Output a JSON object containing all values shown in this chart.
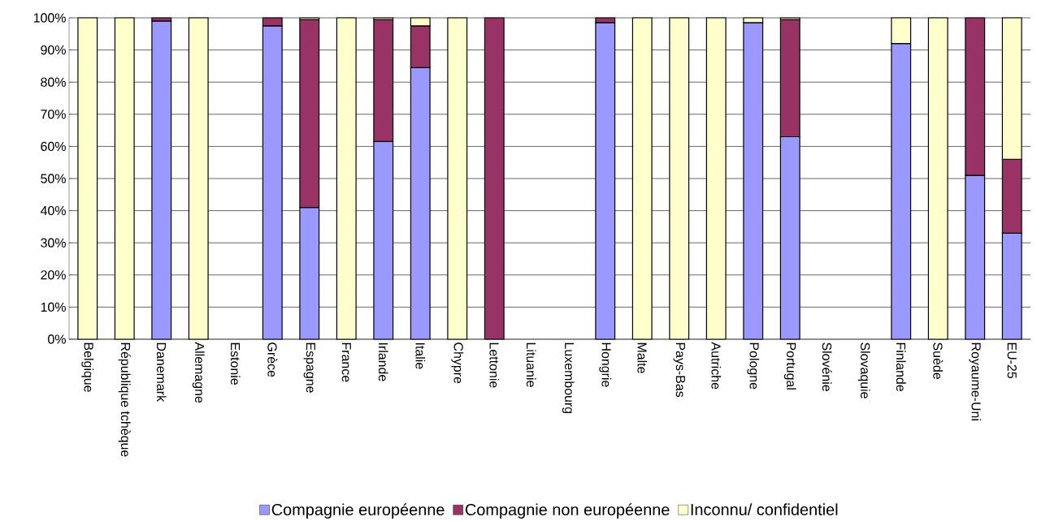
{
  "chart_data": {
    "type": "bar",
    "stacked": true,
    "grid": "y",
    "legend": "bottom",
    "categories": [
      "Belgique",
      "République tchèque",
      "Danemark",
      "Allemagne",
      "Estonie",
      "Grèce",
      "Espagne",
      "France",
      "Irlande",
      "Italie",
      "Chypre",
      "Lettonie",
      "Lituanie",
      "Luxembourg",
      "Hongrie",
      "Malte",
      "Pays-Bas",
      "Autriche",
      "Pologne",
      "Portugal",
      "Slovénie",
      "Slovaquie",
      "Finlande",
      "Suède",
      "Royaume-Uni",
      "EU-25"
    ],
    "series": [
      {
        "name": "Compagnie européenne",
        "color": "#9999ff",
        "values": [
          0,
          0,
          99,
          0,
          null,
          97.5,
          41,
          0,
          61.5,
          84.5,
          0,
          0,
          null,
          null,
          98.5,
          0,
          0,
          0,
          98.5,
          63,
          null,
          null,
          92,
          0,
          51,
          33
        ]
      },
      {
        "name": "Compagnie non européenne",
        "color": "#993366",
        "values": [
          0,
          0,
          1,
          0,
          null,
          2.5,
          58.5,
          0,
          38,
          13,
          0,
          100,
          null,
          null,
          1.5,
          0,
          0,
          0,
          0,
          36.5,
          null,
          null,
          0,
          0,
          49,
          23
        ]
      },
      {
        "name": "Inconnu/ confidentiel",
        "color": "#ffffcc",
        "values": [
          100,
          100,
          0,
          100,
          null,
          0,
          0.5,
          100,
          0.5,
          2.5,
          100,
          0,
          null,
          null,
          0,
          100,
          100,
          100,
          1.5,
          0.5,
          null,
          null,
          8,
          100,
          0,
          44
        ]
      }
    ],
    "ylim": [
      0,
      100
    ],
    "yticks": [
      {
        "value": 0,
        "label": "0%"
      },
      {
        "value": 10,
        "label": "10%"
      },
      {
        "value": 20,
        "label": "20%"
      },
      {
        "value": 30,
        "label": "30%"
      },
      {
        "value": 40,
        "label": "40%"
      },
      {
        "value": 50,
        "label": "50%"
      },
      {
        "value": 60,
        "label": "60%"
      },
      {
        "value": 70,
        "label": "70%"
      },
      {
        "value": 80,
        "label": "80%"
      },
      {
        "value": 90,
        "label": "90%"
      },
      {
        "value": 100,
        "label": "100%"
      }
    ]
  }
}
